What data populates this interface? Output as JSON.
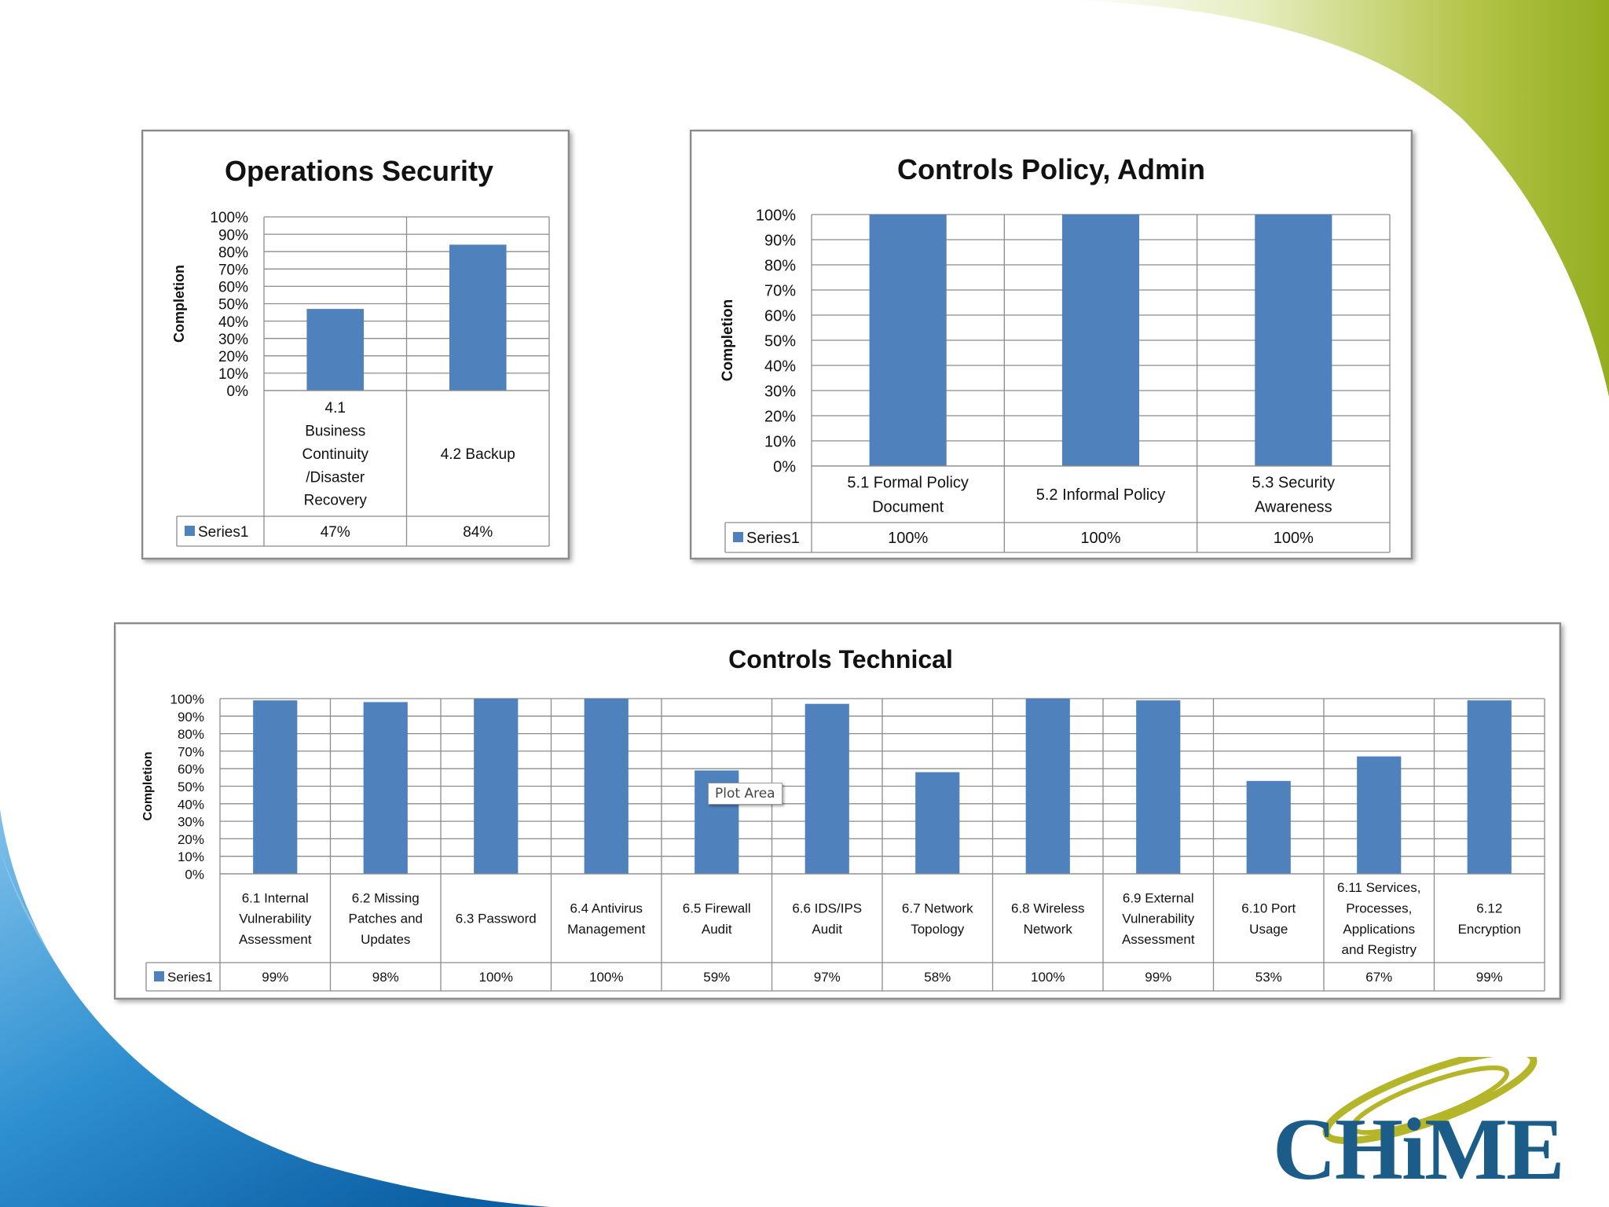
{
  "colors": {
    "bar": "#4f81bd",
    "grid": "#8c8c8c",
    "green_accent": "#9fb52c",
    "blue_accent": "#1f76bb",
    "logo_blue": "#1b5d88",
    "logo_gold": "#b5b52a"
  },
  "tooltip": {
    "text": "Plot Area"
  },
  "logo": {
    "text": "CHiME"
  },
  "chart_data": [
    {
      "id": "operations",
      "type": "bar",
      "title": "Operations Security",
      "ylabel": "Completion",
      "ylim": [
        0,
        100
      ],
      "yticks": [
        "0%",
        "10%",
        "20%",
        "30%",
        "40%",
        "50%",
        "60%",
        "70%",
        "80%",
        "90%",
        "100%"
      ],
      "categories": [
        [
          "4.1",
          "Business",
          "Continuity",
          "/Disaster",
          "Recovery"
        ],
        [
          "4.2 Backup"
        ]
      ],
      "series": [
        {
          "name": "Series1",
          "values": [
            47,
            84
          ],
          "labels": [
            "47%",
            "84%"
          ]
        }
      ],
      "legend": "data-table"
    },
    {
      "id": "policy",
      "type": "bar",
      "title": "Controls Policy, Admin",
      "ylabel": "Completion",
      "ylim": [
        0,
        100
      ],
      "yticks": [
        "0%",
        "10%",
        "20%",
        "30%",
        "40%",
        "50%",
        "60%",
        "70%",
        "80%",
        "90%",
        "100%"
      ],
      "categories": [
        [
          "5.1 Formal Policy",
          "Document"
        ],
        [
          "5.2 Informal Policy"
        ],
        [
          "5.3 Security",
          "Awareness"
        ]
      ],
      "series": [
        {
          "name": "Series1",
          "values": [
            100,
            100,
            100
          ],
          "labels": [
            "100%",
            "100%",
            "100%"
          ]
        }
      ],
      "legend": "data-table"
    },
    {
      "id": "technical",
      "type": "bar",
      "title": "Controls Technical",
      "ylabel": "Completion",
      "ylim": [
        0,
        100
      ],
      "yticks": [
        "0%",
        "10%",
        "20%",
        "30%",
        "40%",
        "50%",
        "60%",
        "70%",
        "80%",
        "90%",
        "100%"
      ],
      "categories": [
        [
          "6.1 Internal",
          "Vulnerability",
          "Assessment"
        ],
        [
          "6.2 Missing",
          "Patches and",
          "Updates"
        ],
        [
          "6.3 Password"
        ],
        [
          "6.4 Antivirus",
          "Management"
        ],
        [
          "6.5 Firewall",
          "Audit"
        ],
        [
          "6.6 IDS/IPS",
          "Audit"
        ],
        [
          "6.7 Network",
          "Topology"
        ],
        [
          "6.8 Wireless",
          "Network"
        ],
        [
          "6.9 External",
          "Vulnerability",
          "Assessment"
        ],
        [
          "6.10 Port",
          "Usage"
        ],
        [
          "6.11 Services,",
          "Processes,",
          "Applications",
          "and Registry"
        ],
        [
          "6.12",
          "Encryption"
        ]
      ],
      "series": [
        {
          "name": "Series1",
          "values": [
            99,
            98,
            100,
            100,
            59,
            97,
            58,
            100,
            99,
            53,
            67,
            99
          ],
          "labels": [
            "99%",
            "98%",
            "100%",
            "100%",
            "59%",
            "97%",
            "58%",
            "100%",
            "99%",
            "53%",
            "67%",
            "99%"
          ]
        }
      ],
      "legend": "data-table"
    }
  ]
}
